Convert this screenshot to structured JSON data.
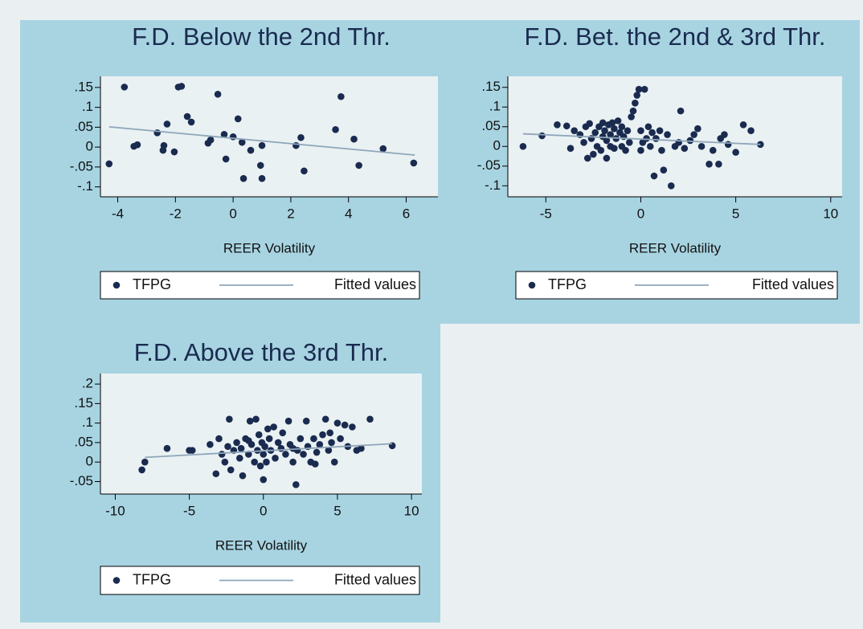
{
  "chart_data": [
    {
      "type": "scatter",
      "title": "F.D. Below the 2nd Thr.",
      "xlabel": "REER Volatility",
      "xlim": [
        -4.6,
        7.1
      ],
      "ylim": [
        -0.125,
        0.178
      ],
      "xticks": [
        -4,
        -2,
        0,
        2,
        4,
        6
      ],
      "yticks": [
        {
          "value": 0.15,
          "label": ".15"
        },
        {
          "value": 0.1,
          "label": ".1"
        },
        {
          "value": 0.05,
          "label": ".05"
        },
        0,
        {
          "value": -0.05,
          "label": "-.05"
        },
        {
          "value": -0.1,
          "label": "-.1"
        }
      ],
      "series": [
        {
          "name": "TFPG",
          "color": "#1a2b4f",
          "x": [
            -4.3,
            -3.77,
            -3.44,
            -3.32,
            -2.63,
            -2.43,
            -2.4,
            -2.29,
            -2.04,
            -1.9,
            -1.79,
            -1.59,
            -1.45,
            -0.87,
            -0.78,
            -0.53,
            -0.31,
            -0.25,
            0,
            0.17,
            0.31,
            0.36,
            0.61,
            0.95,
            1.0,
            1.0,
            2.18,
            2.35,
            2.46,
            3.55,
            3.74,
            4.19,
            4.36,
            5.2,
            6.26
          ],
          "values": [
            -0.042,
            0.151,
            0.002,
            0.006,
            0.036,
            -0.008,
            0.004,
            0.058,
            -0.012,
            0.151,
            0.153,
            0.077,
            0.063,
            0.01,
            0.018,
            0.133,
            0.032,
            -0.03,
            0.026,
            0.071,
            0.012,
            -0.079,
            -0.008,
            -0.046,
            -0.079,
            0.004,
            0.004,
            0.024,
            -0.06,
            0.044,
            0.127,
            0.02,
            -0.046,
            -0.004,
            -0.04
          ]
        },
        {
          "name": "Fitted values",
          "type": "line",
          "color": "#8ea6ba",
          "x": [
            -4.3,
            6.3
          ],
          "values": [
            0.051,
            -0.02
          ]
        }
      ]
    },
    {
      "type": "scatter",
      "title": "F.D. Bet. the 2nd & 3rd Thr.",
      "xlabel": "REER Volatility",
      "xlim": [
        -7.0,
        10.6
      ],
      "ylim": [
        -0.128,
        0.178
      ],
      "xticks": [
        -5,
        0,
        5,
        10
      ],
      "yticks": [
        {
          "value": 0.15,
          "label": ".15"
        },
        {
          "value": 0.1,
          "label": ".1"
        },
        {
          "value": 0.05,
          "label": ".05"
        },
        0,
        {
          "value": -0.05,
          "label": "-.05"
        },
        {
          "value": -0.1,
          "label": "-.1"
        }
      ],
      "series": [
        {
          "name": "TFPG",
          "color": "#1a2b4f",
          "x": [
            -6.2,
            -5.2,
            -4.4,
            -3.9,
            -3.7,
            -3.5,
            -3.2,
            -3.0,
            -2.9,
            -2.8,
            -2.7,
            -2.6,
            -2.5,
            -2.4,
            -2.3,
            -2.2,
            -2.1,
            -2.0,
            -2.0,
            -1.9,
            -1.8,
            -1.8,
            -1.7,
            -1.6,
            -1.6,
            -1.5,
            -1.4,
            -1.4,
            -1.3,
            -1.2,
            -1.1,
            -1.0,
            -1.0,
            -0.9,
            -0.8,
            -0.7,
            -0.6,
            -0.5,
            -0.4,
            -0.3,
            -0.2,
            -0.1,
            0.0,
            0.0,
            0.1,
            0.2,
            0.3,
            0.4,
            0.5,
            0.6,
            0.7,
            0.8,
            1.0,
            1.1,
            1.2,
            1.4,
            1.6,
            1.8,
            2.0,
            2.1,
            2.3,
            2.6,
            2.8,
            3.0,
            3.2,
            3.6,
            3.8,
            4.1,
            4.2,
            4.4,
            4.6,
            5.0,
            5.4,
            5.8,
            6.3
          ],
          "values": [
            0.0,
            0.027,
            0.055,
            0.052,
            -0.005,
            0.04,
            0.03,
            0.01,
            0.05,
            -0.03,
            0.058,
            0.02,
            -0.02,
            0.035,
            0.0,
            0.05,
            -0.01,
            0.06,
            0.025,
            0.04,
            -0.03,
            0.015,
            0.055,
            0.03,
            0.0,
            0.06,
            0.045,
            -0.005,
            0.02,
            0.065,
            0.035,
            0.0,
            0.05,
            0.025,
            -0.01,
            0.04,
            0.01,
            0.075,
            0.09,
            0.11,
            0.13,
            0.145,
            0.04,
            -0.01,
            0.01,
            0.145,
            0.02,
            0.05,
            0.0,
            0.035,
            -0.075,
            0.02,
            0.04,
            -0.01,
            -0.06,
            0.03,
            -0.1,
            0.0,
            0.01,
            0.09,
            -0.005,
            0.015,
            0.03,
            0.045,
            0.0,
            -0.045,
            -0.01,
            -0.045,
            0.02,
            0.03,
            0.005,
            -0.015,
            0.055,
            0.04,
            0.005
          ]
        },
        {
          "name": "Fitted values",
          "type": "line",
          "color": "#8ea6ba",
          "x": [
            -6.2,
            6.3
          ],
          "values": [
            0.032,
            0.005
          ]
        }
      ]
    },
    {
      "type": "scatter",
      "title": "F.D. Above the 3rd Thr.",
      "xlabel": "REER Volatility",
      "xlim": [
        -11.0,
        10.7
      ],
      "ylim": [
        -0.082,
        0.227
      ],
      "xticks": [
        -10,
        -5,
        0,
        5,
        10
      ],
      "yticks": [
        {
          "value": 0.2,
          "label": ".2"
        },
        {
          "value": 0.15,
          "label": ".15"
        },
        {
          "value": 0.1,
          "label": ".1"
        },
        {
          "value": 0.05,
          "label": ".05"
        },
        0,
        {
          "value": -0.05,
          "label": "-.05"
        }
      ],
      "series": [
        {
          "name": "TFPG",
          "color": "#1a2b4f",
          "x": [
            -8.2,
            -8.0,
            -6.5,
            -5.0,
            -4.8,
            -3.6,
            -3.2,
            -3.0,
            -2.8,
            -2.6,
            -2.4,
            -2.3,
            -2.2,
            -2.0,
            -1.8,
            -1.6,
            -1.5,
            -1.4,
            -1.2,
            -1.0,
            -0.9,
            -0.8,
            -0.6,
            -0.5,
            -0.4,
            -0.3,
            -0.2,
            -0.1,
            0.0,
            0.0,
            0.1,
            0.2,
            0.4,
            0.5,
            0.7,
            0.8,
            1.0,
            1.2,
            1.3,
            1.5,
            1.7,
            1.8,
            2.0,
            2.2,
            2.3,
            2.5,
            2.7,
            2.9,
            3.0,
            3.2,
            3.4,
            3.6,
            3.8,
            4.0,
            4.2,
            4.4,
            4.6,
            4.8,
            5.0,
            5.2,
            5.5,
            5.7,
            6.0,
            6.3,
            6.6,
            7.2,
            8.7,
            -1.0,
            0.3,
            2.0,
            3.5,
            4.5
          ],
          "values": [
            -0.02,
            0.0,
            0.035,
            0.03,
            0.03,
            0.045,
            -0.03,
            0.06,
            0.02,
            0.0,
            0.04,
            0.11,
            -0.02,
            0.03,
            0.05,
            0.01,
            0.035,
            -0.035,
            0.06,
            0.02,
            0.105,
            0.045,
            0.0,
            0.11,
            0.03,
            0.07,
            -0.01,
            0.05,
            0.02,
            -0.045,
            0.04,
            0.0,
            0.06,
            0.03,
            0.09,
            0.01,
            0.05,
            0.035,
            0.075,
            0.02,
            0.105,
            0.045,
            0.0,
            -0.058,
            0.03,
            0.06,
            0.02,
            0.105,
            0.04,
            0.0,
            0.06,
            0.025,
            0.045,
            0.07,
            0.11,
            0.03,
            0.05,
            0.0,
            0.1,
            0.06,
            0.095,
            0.04,
            0.09,
            0.03,
            0.035,
            0.11,
            0.042,
            0.055,
            0.085,
            0.035,
            -0.005,
            0.075
          ]
        },
        {
          "name": "Fitted values",
          "type": "line",
          "color": "#8ea6ba",
          "x": [
            -8.0,
            8.7
          ],
          "values": [
            0.012,
            0.047
          ]
        }
      ]
    }
  ]
}
